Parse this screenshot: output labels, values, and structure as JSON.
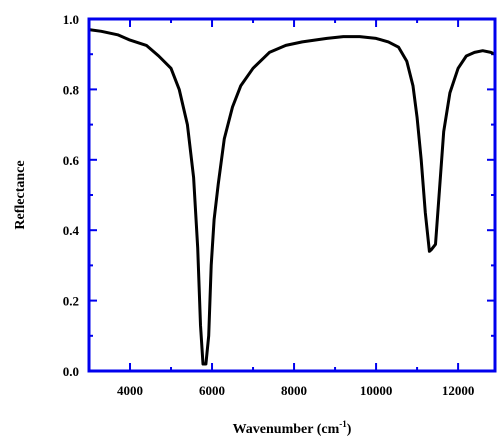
{
  "chart_data": {
    "type": "line",
    "xlabel": "Wavenumber (cm",
    "xlabel_sup": "-1",
    "xlabel_tail": ")",
    "ylabel": "Reflectance",
    "xlim": [
      3000,
      12900
    ],
    "ylim": [
      0.0,
      1.0
    ],
    "xticks": [
      4000,
      6000,
      8000,
      10000,
      12000
    ],
    "yticks": [
      0.0,
      0.2,
      0.4,
      0.6,
      0.8,
      1.0
    ],
    "ytick_labels": [
      "0.0",
      "0.2",
      "0.4",
      "0.6",
      "0.8",
      "1.0"
    ],
    "grid": false,
    "axis_color": "#0000ee",
    "line_color": "#000000",
    "series": [
      {
        "x": [
          3000,
          3300,
          3700,
          4000,
          4400,
          4700,
          5000,
          5200,
          5400,
          5550,
          5650,
          5720,
          5780,
          5850,
          5920,
          5980,
          6050,
          6150,
          6300,
          6500,
          6700,
          7000,
          7400,
          7800,
          8200,
          8500,
          8800,
          9200,
          9600,
          10000,
          10300,
          10550,
          10750,
          10900,
          11000,
          11100,
          11200,
          11300,
          11350,
          11450,
          11550,
          11650,
          11800,
          12000,
          12200,
          12400,
          12600,
          12800,
          12900
        ],
        "y": [
          0.97,
          0.965,
          0.955,
          0.94,
          0.925,
          0.895,
          0.86,
          0.8,
          0.7,
          0.55,
          0.35,
          0.13,
          0.02,
          0.02,
          0.1,
          0.3,
          0.43,
          0.53,
          0.66,
          0.75,
          0.81,
          0.86,
          0.905,
          0.925,
          0.935,
          0.94,
          0.945,
          0.95,
          0.95,
          0.945,
          0.935,
          0.92,
          0.88,
          0.81,
          0.72,
          0.6,
          0.45,
          0.34,
          0.345,
          0.36,
          0.52,
          0.68,
          0.79,
          0.86,
          0.895,
          0.905,
          0.91,
          0.905,
          0.9
        ]
      }
    ]
  }
}
